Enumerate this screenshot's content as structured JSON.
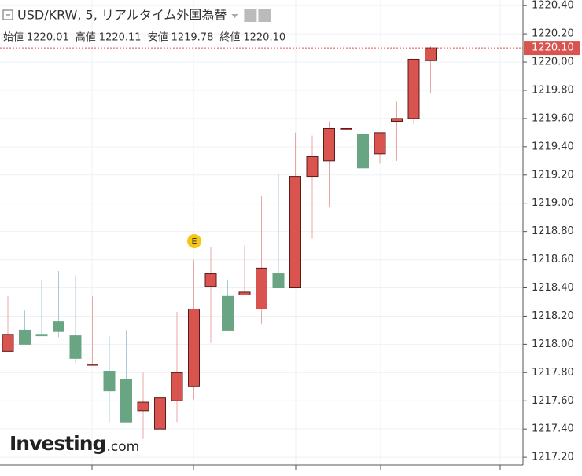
{
  "chart_data": {
    "type": "candlestick",
    "title": "USD/KRW, 5, リアルタイム外国為替",
    "ohlc": [
      {
        "name": "始値",
        "value": 1220.01
      },
      {
        "name": "高値",
        "value": 1220.11
      },
      {
        "name": "安値",
        "value": 1219.78
      },
      {
        "name": "終値",
        "value": 1220.1,
        "label": "1220.10"
      }
    ],
    "series": [
      {
        "open": [
          1217.95,
          1218.1,
          1218.07,
          1218.16,
          1218.06,
          1217.86,
          1217.81,
          1217.75,
          1217.53,
          1217.4,
          1217.6,
          1217.7,
          1218.41,
          1218.34,
          1218.35,
          1218.25,
          1218.5,
          1218.4,
          1219.19,
          1219.3,
          1219.52,
          1219.49,
          1219.35,
          1219.58,
          1219.6,
          1220.01
        ],
        "high": [
          1218.34,
          1218.24,
          1218.46,
          1218.52,
          1218.49,
          1218.34,
          1218.06,
          1218.1,
          1217.8,
          1218.2,
          1218.23,
          1218.6,
          1218.69,
          1218.46,
          1218.7,
          1219.05,
          1219.21,
          1219.5,
          1219.48,
          1219.58,
          1219.53,
          1219.54,
          1219.5,
          1219.72,
          1220.02,
          1220.11
        ],
        "low": [
          1217.95,
          1218.0,
          1218.06,
          1218.05,
          1217.87,
          1217.85,
          1217.45,
          1217.45,
          1217.33,
          1217.31,
          1217.45,
          1217.61,
          1218.01,
          1218.1,
          1218.35,
          1218.14,
          1218.4,
          1218.4,
          1218.75,
          1218.97,
          1219.52,
          1219.06,
          1219.28,
          1219.3,
          1219.56,
          1219.78
        ],
        "close": [
          1218.07,
          1218.0,
          1218.06,
          1218.09,
          1217.9,
          1217.86,
          1217.67,
          1217.45,
          1217.59,
          1217.62,
          1217.8,
          1218.25,
          1218.5,
          1218.1,
          1218.37,
          1218.54,
          1218.4,
          1219.19,
          1219.33,
          1219.53,
          1219.53,
          1219.25,
          1219.5,
          1219.6,
          1220.02,
          1220.1
        ]
      }
    ],
    "up_color": "#d9534f",
    "down_color": "#6aa583",
    "ylim": [
      1217.145,
      1220.44
    ],
    "yticks": [
      {
        "value": 1217.2,
        "label": "1217.20"
      },
      {
        "value": 1217.4,
        "label": "1217.40"
      },
      {
        "value": 1217.6,
        "label": "1217.60"
      },
      {
        "value": 1217.8,
        "label": "1217.80"
      },
      {
        "value": 1218.0,
        "label": "1218.00"
      },
      {
        "value": 1218.2,
        "label": "1218.20"
      },
      {
        "value": 1218.4,
        "label": "1218.40"
      },
      {
        "value": 1218.6,
        "label": "1218.60"
      },
      {
        "value": 1218.8,
        "label": "1218.80"
      },
      {
        "value": 1219.0,
        "label": "1219.00"
      },
      {
        "value": 1219.2,
        "label": "1219.20"
      },
      {
        "value": 1219.4,
        "label": "1219.40"
      },
      {
        "value": 1219.6,
        "label": "1219.60"
      },
      {
        "value": 1219.8,
        "label": "1219.80"
      },
      {
        "value": 1220.0,
        "label": "1220.00"
      },
      {
        "value": 1220.2,
        "label": "1220.20"
      },
      {
        "value": 1220.4,
        "label": "1220.40"
      }
    ],
    "last_price": {
      "value": 1220.1,
      "label": "1220.10"
    },
    "event_marker": "E",
    "watermark": {
      "name": "Investing",
      "suffix": ".com"
    },
    "grid": true
  }
}
